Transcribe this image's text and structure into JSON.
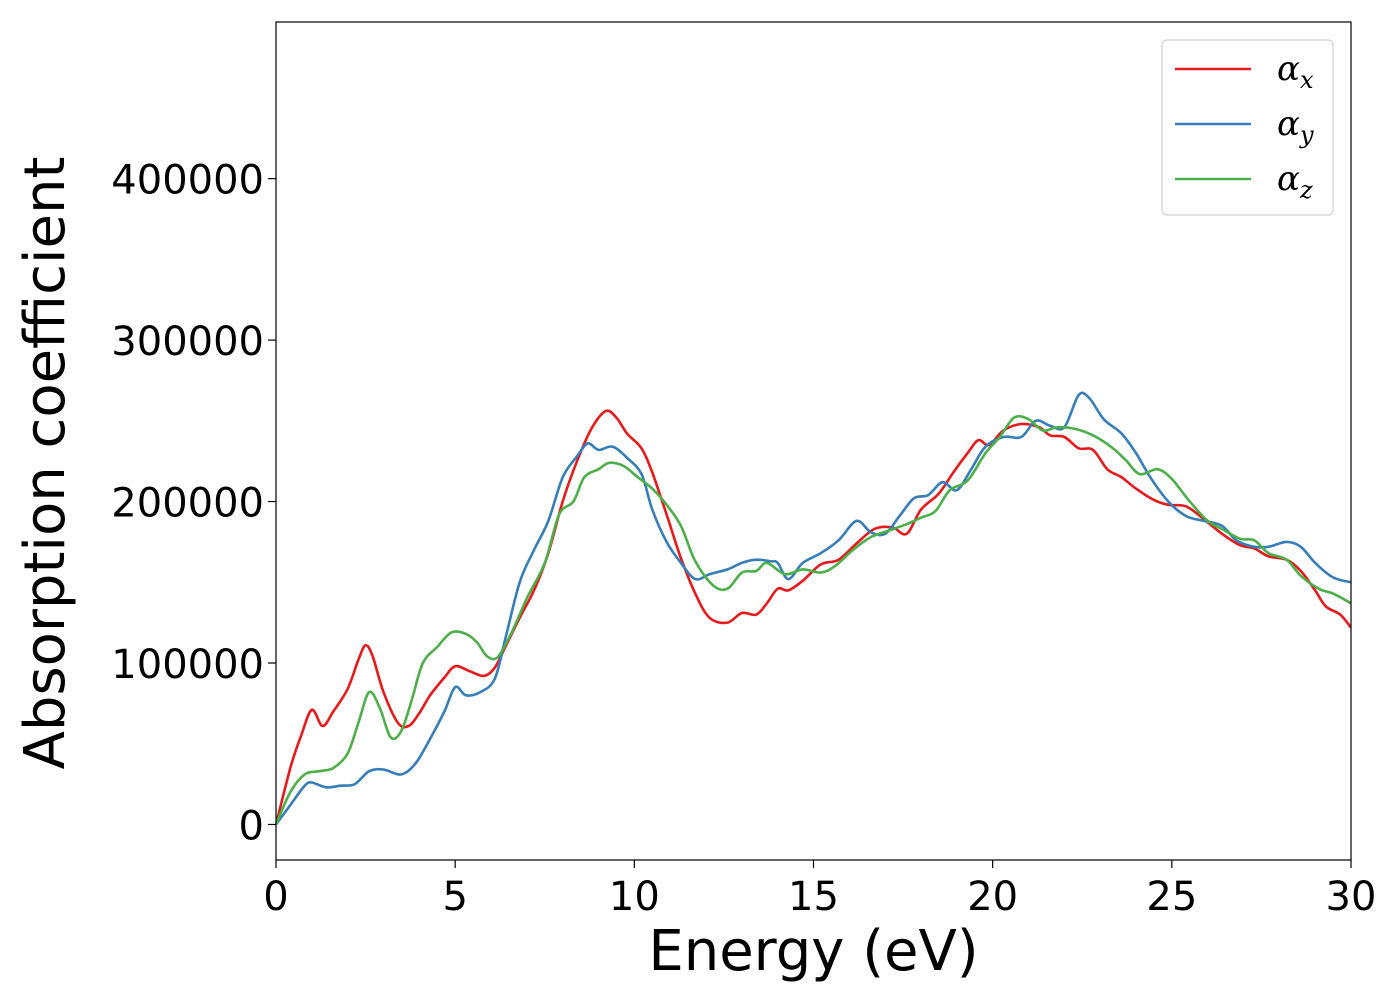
{
  "chart_data": {
    "type": "line",
    "title": "",
    "xlabel": "Energy (eV)",
    "ylabel": "Absorption coefficient",
    "xlim": [
      0,
      30
    ],
    "ylim": [
      -22000,
      497000
    ],
    "xticks": [
      0,
      5,
      10,
      15,
      20,
      25,
      30
    ],
    "xtick_labels": [
      "0",
      "5",
      "10",
      "15",
      "20",
      "25",
      "30"
    ],
    "yticks": [
      0,
      100000,
      200000,
      300000,
      400000
    ],
    "ytick_labels": [
      "0",
      "100000",
      "200000",
      "300000",
      "400000"
    ],
    "grid": false,
    "legend_position": "top-right",
    "series": [
      {
        "name": "αx",
        "legend_base": "α",
        "legend_sub": "x",
        "color": "#e41a1c",
        "points": [
          [
            0,
            0
          ],
          [
            0.4,
            35000
          ],
          [
            0.7,
            55000
          ],
          [
            1.0,
            71000
          ],
          [
            1.3,
            61000
          ],
          [
            1.6,
            70000
          ],
          [
            2.0,
            84000
          ],
          [
            2.3,
            102000
          ],
          [
            2.5,
            111000
          ],
          [
            2.7,
            104000
          ],
          [
            3.0,
            82000
          ],
          [
            3.4,
            63000
          ],
          [
            3.7,
            61000
          ],
          [
            4.0,
            69000
          ],
          [
            4.3,
            80000
          ],
          [
            4.7,
            91000
          ],
          [
            5.0,
            98000
          ],
          [
            5.4,
            95000
          ],
          [
            5.8,
            92000
          ],
          [
            6.1,
            97000
          ],
          [
            6.4,
            110000
          ],
          [
            6.8,
            128000
          ],
          [
            7.2,
            145000
          ],
          [
            7.6,
            168000
          ],
          [
            8.0,
            200000
          ],
          [
            8.4,
            225000
          ],
          [
            8.8,
            245000
          ],
          [
            9.2,
            256000
          ],
          [
            9.5,
            252000
          ],
          [
            9.8,
            242000
          ],
          [
            10.2,
            233000
          ],
          [
            10.5,
            218000
          ],
          [
            10.9,
            192000
          ],
          [
            11.3,
            165000
          ],
          [
            11.7,
            143000
          ],
          [
            12.1,
            128000
          ],
          [
            12.6,
            125000
          ],
          [
            13.0,
            131000
          ],
          [
            13.4,
            130000
          ],
          [
            13.7,
            137000
          ],
          [
            14.0,
            146000
          ],
          [
            14.3,
            145000
          ],
          [
            14.7,
            151000
          ],
          [
            15.2,
            161000
          ],
          [
            15.7,
            164000
          ],
          [
            16.2,
            174000
          ],
          [
            16.7,
            183000
          ],
          [
            17.2,
            184000
          ],
          [
            17.6,
            180000
          ],
          [
            18.0,
            195000
          ],
          [
            18.5,
            205000
          ],
          [
            18.9,
            218000
          ],
          [
            19.3,
            230000
          ],
          [
            19.6,
            238000
          ],
          [
            19.9,
            235000
          ],
          [
            20.3,
            244000
          ],
          [
            20.8,
            248000
          ],
          [
            21.3,
            246000
          ],
          [
            21.6,
            241000
          ],
          [
            22.0,
            240000
          ],
          [
            22.4,
            233000
          ],
          [
            22.8,
            232000
          ],
          [
            23.2,
            220000
          ],
          [
            23.6,
            215000
          ],
          [
            24.0,
            208000
          ],
          [
            24.5,
            201000
          ],
          [
            24.9,
            198000
          ],
          [
            25.4,
            197000
          ],
          [
            25.9,
            189000
          ],
          [
            26.4,
            180000
          ],
          [
            26.9,
            173000
          ],
          [
            27.3,
            171000
          ],
          [
            27.7,
            166000
          ],
          [
            28.2,
            164000
          ],
          [
            28.6,
            157000
          ],
          [
            29.0,
            145000
          ],
          [
            29.3,
            135000
          ],
          [
            29.7,
            130000
          ],
          [
            30.0,
            122000
          ]
        ]
      },
      {
        "name": "αy",
        "legend_base": "α",
        "legend_sub": "y",
        "color": "#377eb8",
        "points": [
          [
            0,
            0
          ],
          [
            0.4,
            12000
          ],
          [
            0.8,
            24000
          ],
          [
            1.0,
            26000
          ],
          [
            1.4,
            23000
          ],
          [
            1.8,
            24000
          ],
          [
            2.2,
            25000
          ],
          [
            2.6,
            33000
          ],
          [
            3.0,
            34000
          ],
          [
            3.5,
            31000
          ],
          [
            3.9,
            38000
          ],
          [
            4.3,
            53000
          ],
          [
            4.7,
            70000
          ],
          [
            5.0,
            85000
          ],
          [
            5.3,
            80000
          ],
          [
            5.7,
            82000
          ],
          [
            6.1,
            90000
          ],
          [
            6.4,
            115000
          ],
          [
            6.8,
            150000
          ],
          [
            7.2,
            170000
          ],
          [
            7.6,
            188000
          ],
          [
            8.0,
            215000
          ],
          [
            8.4,
            228000
          ],
          [
            8.7,
            236000
          ],
          [
            9.0,
            232000
          ],
          [
            9.4,
            234000
          ],
          [
            9.8,
            227000
          ],
          [
            10.2,
            217000
          ],
          [
            10.5,
            195000
          ],
          [
            10.9,
            175000
          ],
          [
            11.3,
            162000
          ],
          [
            11.7,
            152000
          ],
          [
            12.1,
            155000
          ],
          [
            12.6,
            158000
          ],
          [
            13.0,
            162000
          ],
          [
            13.4,
            164000
          ],
          [
            13.8,
            163000
          ],
          [
            14.0,
            162000
          ],
          [
            14.3,
            152000
          ],
          [
            14.7,
            162000
          ],
          [
            15.2,
            168000
          ],
          [
            15.7,
            176000
          ],
          [
            16.2,
            188000
          ],
          [
            16.6,
            181000
          ],
          [
            17.0,
            180000
          ],
          [
            17.4,
            191000
          ],
          [
            17.8,
            202000
          ],
          [
            18.2,
            204000
          ],
          [
            18.6,
            212000
          ],
          [
            19.0,
            207000
          ],
          [
            19.4,
            220000
          ],
          [
            19.8,
            234000
          ],
          [
            20.3,
            240000
          ],
          [
            20.8,
            240000
          ],
          [
            21.2,
            250000
          ],
          [
            21.6,
            247000
          ],
          [
            22.0,
            246000
          ],
          [
            22.4,
            266000
          ],
          [
            22.7,
            264000
          ],
          [
            23.1,
            251000
          ],
          [
            23.6,
            242000
          ],
          [
            24.0,
            230000
          ],
          [
            24.4,
            215000
          ],
          [
            24.9,
            200000
          ],
          [
            25.4,
            191000
          ],
          [
            25.9,
            188000
          ],
          [
            26.4,
            185000
          ],
          [
            26.8,
            176000
          ],
          [
            27.3,
            172000
          ],
          [
            27.7,
            172000
          ],
          [
            28.2,
            175000
          ],
          [
            28.6,
            172000
          ],
          [
            29.0,
            162000
          ],
          [
            29.5,
            153000
          ],
          [
            30.0,
            150000
          ]
        ]
      },
      {
        "name": "αz",
        "legend_base": "α",
        "legend_sub": "z",
        "color": "#4daf4a",
        "points": [
          [
            0,
            0
          ],
          [
            0.4,
            20000
          ],
          [
            0.8,
            31000
          ],
          [
            1.2,
            33000
          ],
          [
            1.6,
            35000
          ],
          [
            2.0,
            44000
          ],
          [
            2.3,
            63000
          ],
          [
            2.6,
            82000
          ],
          [
            2.9,
            72000
          ],
          [
            3.2,
            54000
          ],
          [
            3.5,
            58000
          ],
          [
            3.8,
            78000
          ],
          [
            4.1,
            100000
          ],
          [
            4.5,
            110000
          ],
          [
            4.9,
            119000
          ],
          [
            5.3,
            118000
          ],
          [
            5.6,
            113000
          ],
          [
            5.9,
            104000
          ],
          [
            6.2,
            104000
          ],
          [
            6.6,
            120000
          ],
          [
            7.0,
            140000
          ],
          [
            7.5,
            162000
          ],
          [
            7.9,
            192000
          ],
          [
            8.3,
            200000
          ],
          [
            8.6,
            215000
          ],
          [
            9.0,
            220000
          ],
          [
            9.3,
            224000
          ],
          [
            9.7,
            222000
          ],
          [
            10.1,
            215000
          ],
          [
            10.5,
            208000
          ],
          [
            10.9,
            198000
          ],
          [
            11.3,
            185000
          ],
          [
            11.7,
            163000
          ],
          [
            12.2,
            148000
          ],
          [
            12.6,
            146000
          ],
          [
            13.0,
            156000
          ],
          [
            13.4,
            157000
          ],
          [
            13.7,
            162000
          ],
          [
            14.2,
            155000
          ],
          [
            14.7,
            158000
          ],
          [
            15.2,
            156000
          ],
          [
            15.6,
            160000
          ],
          [
            16.1,
            170000
          ],
          [
            16.6,
            178000
          ],
          [
            17.1,
            182000
          ],
          [
            17.6,
            186000
          ],
          [
            18.0,
            190000
          ],
          [
            18.4,
            194000
          ],
          [
            18.8,
            207000
          ],
          [
            19.3,
            213000
          ],
          [
            19.8,
            230000
          ],
          [
            20.2,
            240000
          ],
          [
            20.6,
            252000
          ],
          [
            21.0,
            251000
          ],
          [
            21.4,
            244000
          ],
          [
            21.8,
            246000
          ],
          [
            22.3,
            245000
          ],
          [
            22.8,
            241000
          ],
          [
            23.3,
            234000
          ],
          [
            23.7,
            226000
          ],
          [
            24.1,
            217000
          ],
          [
            24.6,
            220000
          ],
          [
            25.0,
            214000
          ],
          [
            25.5,
            200000
          ],
          [
            26.0,
            188000
          ],
          [
            26.4,
            183000
          ],
          [
            26.9,
            177000
          ],
          [
            27.3,
            176000
          ],
          [
            27.7,
            168000
          ],
          [
            28.2,
            164000
          ],
          [
            28.6,
            154000
          ],
          [
            29.1,
            146000
          ],
          [
            29.5,
            143000
          ],
          [
            30.0,
            137000
          ]
        ]
      }
    ]
  }
}
